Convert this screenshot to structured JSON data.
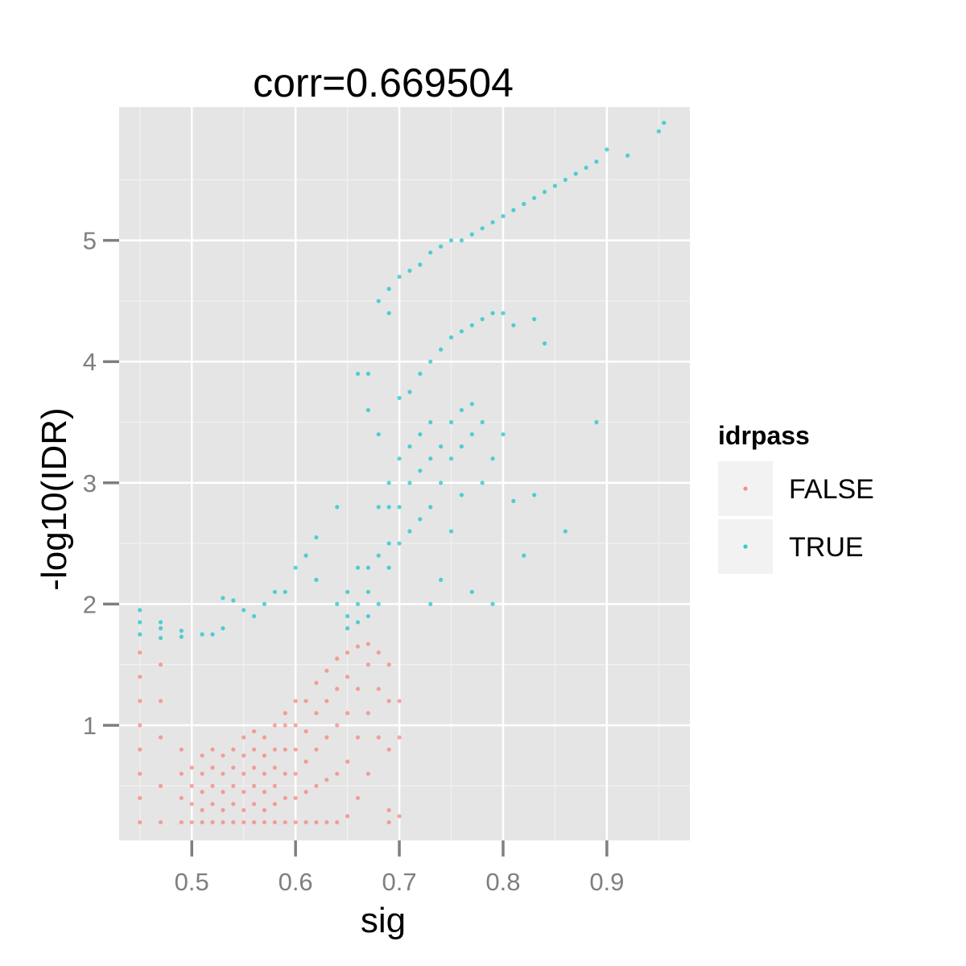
{
  "chart_data": {
    "type": "scatter",
    "title": "corr=0.669504",
    "xlabel": "sig",
    "ylabel": "-log10(IDR)",
    "xlim": [
      0.43,
      0.98
    ],
    "ylim": [
      0.05,
      6.1
    ],
    "x_ticks": [
      0.5,
      0.6,
      0.7,
      0.8,
      0.9
    ],
    "x_tick_labels": [
      "0.5",
      "0.6",
      "0.7",
      "0.8",
      "0.9"
    ],
    "y_ticks": [
      1,
      2,
      3,
      4,
      5
    ],
    "y_tick_labels": [
      "1",
      "2",
      "3",
      "4",
      "5"
    ],
    "grid": true,
    "legend": {
      "title": "idrpass",
      "position": "right",
      "entries": [
        {
          "label": "FALSE",
          "color": "#F8766D"
        },
        {
          "label": "TRUE",
          "color": "#00BFC4"
        }
      ]
    },
    "series": [
      {
        "name": "FALSE",
        "color": "#F8766D",
        "points": [
          [
            0.45,
            0.2
          ],
          [
            0.45,
            0.4
          ],
          [
            0.45,
            0.6
          ],
          [
            0.45,
            0.8
          ],
          [
            0.45,
            1.0
          ],
          [
            0.45,
            1.2
          ],
          [
            0.45,
            1.4
          ],
          [
            0.45,
            1.6
          ],
          [
            0.47,
            0.2
          ],
          [
            0.47,
            0.5
          ],
          [
            0.47,
            0.9
          ],
          [
            0.47,
            1.2
          ],
          [
            0.47,
            1.5
          ],
          [
            0.49,
            0.2
          ],
          [
            0.49,
            0.4
          ],
          [
            0.49,
            0.6
          ],
          [
            0.49,
            0.8
          ],
          [
            0.5,
            0.2
          ],
          [
            0.5,
            0.35
          ],
          [
            0.5,
            0.5
          ],
          [
            0.5,
            0.65
          ],
          [
            0.51,
            0.2
          ],
          [
            0.51,
            0.3
          ],
          [
            0.51,
            0.45
          ],
          [
            0.51,
            0.6
          ],
          [
            0.51,
            0.75
          ],
          [
            0.52,
            0.2
          ],
          [
            0.52,
            0.35
          ],
          [
            0.52,
            0.5
          ],
          [
            0.52,
            0.65
          ],
          [
            0.52,
            0.8
          ],
          [
            0.53,
            0.2
          ],
          [
            0.53,
            0.3
          ],
          [
            0.53,
            0.45
          ],
          [
            0.53,
            0.6
          ],
          [
            0.53,
            0.75
          ],
          [
            0.54,
            0.2
          ],
          [
            0.54,
            0.35
          ],
          [
            0.54,
            0.5
          ],
          [
            0.54,
            0.65
          ],
          [
            0.54,
            0.8
          ],
          [
            0.55,
            0.2
          ],
          [
            0.55,
            0.3
          ],
          [
            0.55,
            0.45
          ],
          [
            0.55,
            0.6
          ],
          [
            0.55,
            0.75
          ],
          [
            0.55,
            0.9
          ],
          [
            0.56,
            0.2
          ],
          [
            0.56,
            0.35
          ],
          [
            0.56,
            0.5
          ],
          [
            0.56,
            0.65
          ],
          [
            0.56,
            0.8
          ],
          [
            0.56,
            0.95
          ],
          [
            0.57,
            0.2
          ],
          [
            0.57,
            0.3
          ],
          [
            0.57,
            0.45
          ],
          [
            0.57,
            0.6
          ],
          [
            0.57,
            0.75
          ],
          [
            0.57,
            0.9
          ],
          [
            0.58,
            0.2
          ],
          [
            0.58,
            0.35
          ],
          [
            0.58,
            0.5
          ],
          [
            0.58,
            0.65
          ],
          [
            0.58,
            0.8
          ],
          [
            0.58,
            1.0
          ],
          [
            0.59,
            0.2
          ],
          [
            0.59,
            0.4
          ],
          [
            0.59,
            0.6
          ],
          [
            0.59,
            0.8
          ],
          [
            0.59,
            1.0
          ],
          [
            0.59,
            1.1
          ],
          [
            0.6,
            0.2
          ],
          [
            0.6,
            0.4
          ],
          [
            0.6,
            0.6
          ],
          [
            0.6,
            0.8
          ],
          [
            0.6,
            1.0
          ],
          [
            0.6,
            1.2
          ],
          [
            0.61,
            0.2
          ],
          [
            0.61,
            0.45
          ],
          [
            0.61,
            0.7
          ],
          [
            0.61,
            0.95
          ],
          [
            0.61,
            1.2
          ],
          [
            0.62,
            0.2
          ],
          [
            0.62,
            0.5
          ],
          [
            0.62,
            0.8
          ],
          [
            0.62,
            1.1
          ],
          [
            0.62,
            1.35
          ],
          [
            0.63,
            0.2
          ],
          [
            0.63,
            0.55
          ],
          [
            0.63,
            0.9
          ],
          [
            0.63,
            1.2
          ],
          [
            0.63,
            1.45
          ],
          [
            0.64,
            0.2
          ],
          [
            0.64,
            0.6
          ],
          [
            0.64,
            1.0
          ],
          [
            0.64,
            1.3
          ],
          [
            0.64,
            1.55
          ],
          [
            0.65,
            0.25
          ],
          [
            0.65,
            0.7
          ],
          [
            0.65,
            1.1
          ],
          [
            0.65,
            1.4
          ],
          [
            0.65,
            1.6
          ],
          [
            0.66,
            0.4
          ],
          [
            0.66,
            0.9
          ],
          [
            0.66,
            1.3
          ],
          [
            0.66,
            1.65
          ],
          [
            0.67,
            0.6
          ],
          [
            0.67,
            1.1
          ],
          [
            0.67,
            1.5
          ],
          [
            0.67,
            1.67
          ],
          [
            0.68,
            0.9
          ],
          [
            0.68,
            1.3
          ],
          [
            0.68,
            1.6
          ],
          [
            0.69,
            0.3
          ],
          [
            0.69,
            0.8
          ],
          [
            0.69,
            1.2
          ],
          [
            0.69,
            1.5
          ],
          [
            0.69,
            0.2
          ],
          [
            0.7,
            0.25
          ],
          [
            0.7,
            0.9
          ],
          [
            0.7,
            1.2
          ]
        ]
      },
      {
        "name": "TRUE",
        "color": "#00BFC4",
        "points": [
          [
            0.45,
            1.75
          ],
          [
            0.45,
            1.85
          ],
          [
            0.45,
            1.95
          ],
          [
            0.47,
            1.72
          ],
          [
            0.47,
            1.8
          ],
          [
            0.47,
            1.85
          ],
          [
            0.49,
            1.73
          ],
          [
            0.49,
            1.78
          ],
          [
            0.51,
            1.75
          ],
          [
            0.52,
            1.75
          ],
          [
            0.53,
            1.8
          ],
          [
            0.53,
            2.05
          ],
          [
            0.54,
            2.03
          ],
          [
            0.55,
            1.95
          ],
          [
            0.56,
            1.9
          ],
          [
            0.57,
            2.0
          ],
          [
            0.58,
            2.1
          ],
          [
            0.59,
            2.1
          ],
          [
            0.6,
            2.3
          ],
          [
            0.61,
            2.4
          ],
          [
            0.62,
            2.55
          ],
          [
            0.62,
            2.2
          ],
          [
            0.64,
            2.8
          ],
          [
            0.64,
            2.0
          ],
          [
            0.65,
            1.8
          ],
          [
            0.65,
            1.9
          ],
          [
            0.65,
            2.1
          ],
          [
            0.66,
            1.85
          ],
          [
            0.66,
            2.0
          ],
          [
            0.66,
            2.3
          ],
          [
            0.66,
            3.9
          ],
          [
            0.67,
            1.9
          ],
          [
            0.67,
            2.1
          ],
          [
            0.67,
            2.3
          ],
          [
            0.67,
            3.6
          ],
          [
            0.67,
            3.9
          ],
          [
            0.68,
            2.0
          ],
          [
            0.68,
            2.4
          ],
          [
            0.68,
            2.8
          ],
          [
            0.68,
            4.5
          ],
          [
            0.68,
            3.4
          ],
          [
            0.69,
            2.3
          ],
          [
            0.69,
            2.5
          ],
          [
            0.69,
            2.8
          ],
          [
            0.69,
            3.0
          ],
          [
            0.69,
            4.6
          ],
          [
            0.69,
            4.4
          ],
          [
            0.7,
            2.5
          ],
          [
            0.7,
            2.8
          ],
          [
            0.7,
            3.2
          ],
          [
            0.7,
            4.7
          ],
          [
            0.7,
            3.7
          ],
          [
            0.71,
            2.6
          ],
          [
            0.71,
            3.0
          ],
          [
            0.71,
            3.3
          ],
          [
            0.71,
            4.75
          ],
          [
            0.71,
            3.75
          ],
          [
            0.72,
            2.7
          ],
          [
            0.72,
            3.1
          ],
          [
            0.72,
            3.4
          ],
          [
            0.72,
            4.8
          ],
          [
            0.72,
            3.9
          ],
          [
            0.73,
            2.8
          ],
          [
            0.73,
            3.2
          ],
          [
            0.73,
            3.5
          ],
          [
            0.73,
            4.9
          ],
          [
            0.73,
            4.0
          ],
          [
            0.73,
            2.0
          ],
          [
            0.74,
            3.0
          ],
          [
            0.74,
            3.3
          ],
          [
            0.74,
            4.95
          ],
          [
            0.74,
            4.1
          ],
          [
            0.74,
            2.2
          ],
          [
            0.75,
            3.2
          ],
          [
            0.75,
            3.5
          ],
          [
            0.75,
            5.0
          ],
          [
            0.75,
            4.2
          ],
          [
            0.75,
            2.6
          ],
          [
            0.76,
            3.3
          ],
          [
            0.76,
            3.6
          ],
          [
            0.76,
            5.0
          ],
          [
            0.76,
            4.25
          ],
          [
            0.76,
            2.9
          ],
          [
            0.77,
            3.4
          ],
          [
            0.77,
            3.65
          ],
          [
            0.77,
            5.05
          ],
          [
            0.77,
            4.3
          ],
          [
            0.77,
            2.1
          ],
          [
            0.78,
            3.5
          ],
          [
            0.78,
            5.1
          ],
          [
            0.78,
            4.35
          ],
          [
            0.78,
            3.0
          ],
          [
            0.79,
            3.2
          ],
          [
            0.79,
            5.15
          ],
          [
            0.79,
            4.4
          ],
          [
            0.79,
            2.0
          ],
          [
            0.8,
            5.2
          ],
          [
            0.8,
            4.4
          ],
          [
            0.8,
            3.4
          ],
          [
            0.81,
            5.25
          ],
          [
            0.81,
            4.3
          ],
          [
            0.81,
            2.85
          ],
          [
            0.82,
            5.3
          ],
          [
            0.82,
            2.4
          ],
          [
            0.83,
            5.35
          ],
          [
            0.83,
            4.35
          ],
          [
            0.83,
            2.9
          ],
          [
            0.84,
            5.4
          ],
          [
            0.84,
            4.15
          ],
          [
            0.85,
            5.45
          ],
          [
            0.86,
            5.5
          ],
          [
            0.86,
            2.6
          ],
          [
            0.87,
            5.55
          ],
          [
            0.88,
            5.6
          ],
          [
            0.89,
            5.65
          ],
          [
            0.89,
            3.5
          ],
          [
            0.9,
            5.75
          ],
          [
            0.92,
            5.7
          ],
          [
            0.95,
            5.9
          ],
          [
            0.955,
            5.97
          ]
        ]
      }
    ]
  }
}
